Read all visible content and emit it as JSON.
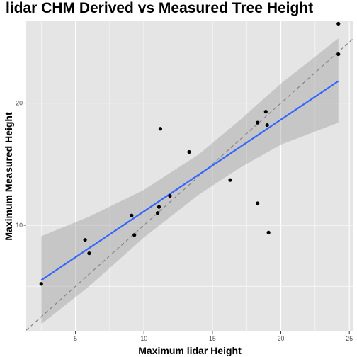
{
  "chart_data": {
    "type": "scatter",
    "title": "lidar CHM Derived vs Measured Tree Height",
    "xlabel": "Maximum lidar Height",
    "ylabel": "Maximum Measured Height",
    "xlim": [
      1.4,
      25.3
    ],
    "ylim": [
      1.3,
      26.7
    ],
    "x_ticks": [
      5,
      10,
      15,
      20,
      25
    ],
    "y_ticks": [
      10,
      20
    ],
    "x_tick_labels": [
      "5",
      "10",
      "15",
      "20",
      "25"
    ],
    "y_tick_labels": [
      "10",
      "20"
    ],
    "grid": true,
    "points": [
      {
        "x": 2.5,
        "y": 5.2
      },
      {
        "x": 5.7,
        "y": 8.8
      },
      {
        "x": 6.0,
        "y": 7.7
      },
      {
        "x": 9.1,
        "y": 10.8
      },
      {
        "x": 9.3,
        "y": 9.2
      },
      {
        "x": 11.0,
        "y": 11.0
      },
      {
        "x": 11.1,
        "y": 11.5
      },
      {
        "x": 11.2,
        "y": 17.9
      },
      {
        "x": 11.9,
        "y": 12.4
      },
      {
        "x": 13.3,
        "y": 16.0
      },
      {
        "x": 16.3,
        "y": 13.7
      },
      {
        "x": 18.3,
        "y": 18.4
      },
      {
        "x": 18.3,
        "y": 11.8
      },
      {
        "x": 18.9,
        "y": 19.3
      },
      {
        "x": 19.0,
        "y": 18.2
      },
      {
        "x": 19.1,
        "y": 9.4
      },
      {
        "x": 24.2,
        "y": 26.5
      },
      {
        "x": 24.2,
        "y": 24.0
      }
    ],
    "fit_line": {
      "x": [
        2.5,
        24.2
      ],
      "y": [
        5.5,
        21.8
      ]
    },
    "confidence_band": {
      "x": [
        2.5,
        6,
        10,
        14,
        17,
        20,
        24.2
      ],
      "upper": [
        9.1,
        10.7,
        12.9,
        15.8,
        18.6,
        21.6,
        25.3
      ],
      "lower": [
        1.9,
        5.0,
        9.0,
        12.5,
        14.7,
        16.6,
        18.4
      ]
    },
    "reference_line": {
      "slope": 1,
      "intercept": 0,
      "style": "dashed"
    },
    "colors": {
      "panel_background": "#e5e5e5",
      "grid": "#ffffff",
      "points": "#000000",
      "fit_line": "#3366ff",
      "confidence_band": "#999999",
      "reference_line": "#808080"
    }
  }
}
